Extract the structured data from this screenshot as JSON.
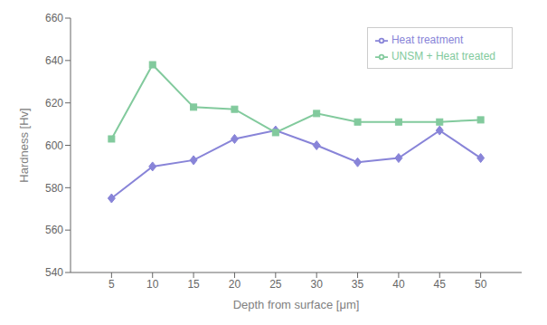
{
  "chart_data": {
    "type": "line",
    "xlabel": "Depth from surface [μm]",
    "ylabel": "Hardness [Hv]",
    "x": [
      5,
      10,
      15,
      20,
      25,
      30,
      35,
      40,
      45,
      50
    ],
    "series": [
      {
        "name": "Heat treatment",
        "values": [
          575,
          590,
          593,
          603,
          607,
          600,
          592,
          594,
          607,
          594
        ],
        "marker": "diamond",
        "line_style": "solid"
      },
      {
        "name": "UNSM + Heat treated",
        "values": [
          603,
          638,
          618,
          617,
          606,
          615,
          611,
          611,
          611,
          612
        ],
        "marker": "square",
        "line_style": "solid"
      }
    ],
    "xlim": [
      0,
      55
    ],
    "xticks": [
      5,
      10,
      15,
      20,
      25,
      30,
      35,
      40,
      45,
      50
    ],
    "ylim": [
      540,
      660
    ],
    "yticks": [
      540,
      560,
      580,
      600,
      620,
      640,
      660
    ],
    "grid": false,
    "legend": "upper right"
  }
}
